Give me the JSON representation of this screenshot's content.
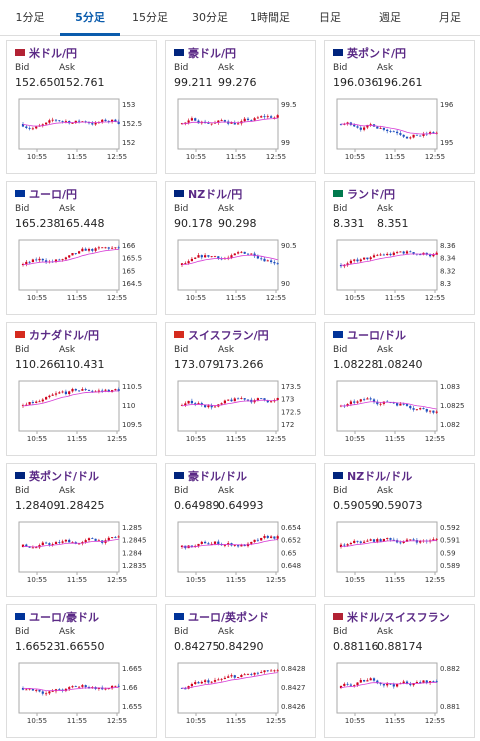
{
  "tabs": [
    "1分足",
    "5分足",
    "15分足",
    "30分足",
    "1時間足",
    "日足",
    "週足",
    "月足"
  ],
  "active_tab": 1,
  "bid_label": "Bid",
  "ask_label": "Ask",
  "panels": [
    {
      "title": "米ドル/円",
      "bid": "152.650",
      "ask": "152.761",
      "yticks": [
        "153",
        "152.5",
        "152"
      ],
      "xticks": [
        "10:55",
        "11:55",
        "12:55"
      ]
    },
    {
      "title": "豪ドル/円",
      "bid": "99.211",
      "ask": "99.276",
      "yticks": [
        "99.5",
        "99"
      ],
      "xticks": [
        "10:55",
        "11:55",
        "12:55"
      ]
    },
    {
      "title": "英ポンド/円",
      "bid": "196.036",
      "ask": "196.261",
      "yticks": [
        "196",
        "195"
      ],
      "xticks": [
        "10:55",
        "11:55",
        "12:55"
      ]
    },
    {
      "title": "ユーロ/円",
      "bid": "165.238",
      "ask": "165.448",
      "yticks": [
        "166",
        "165.5",
        "165",
        "164.5"
      ],
      "xticks": [
        "10:55",
        "11:55",
        "12:55"
      ]
    },
    {
      "title": "NZドル/円",
      "bid": "90.178",
      "ask": "90.298",
      "yticks": [
        "90.5",
        "90"
      ],
      "xticks": [
        "10:55",
        "11:55",
        "12:55"
      ]
    },
    {
      "title": "ランド/円",
      "bid": "8.331",
      "ask": "8.351",
      "yticks": [
        "8.36",
        "8.34",
        "8.32",
        "8.3"
      ],
      "xticks": [
        "10:55",
        "11:55",
        "12:55"
      ]
    },
    {
      "title": "カナダドル/円",
      "bid": "110.266",
      "ask": "110.431",
      "yticks": [
        "110.5",
        "110",
        "109.5"
      ],
      "xticks": [
        "10:55",
        "11:55",
        "12:55"
      ]
    },
    {
      "title": "スイスフラン/円",
      "bid": "173.079",
      "ask": "173.266",
      "yticks": [
        "173.5",
        "173",
        "172.5",
        "172"
      ],
      "xticks": [
        "10:55",
        "11:55",
        "12:55"
      ]
    },
    {
      "title": "ユーロ/ドル",
      "bid": "1.08228",
      "ask": "1.08240",
      "yticks": [
        "1.083",
        "1.0825",
        "1.082"
      ],
      "xticks": [
        "10:55",
        "11:55",
        "12:55"
      ]
    },
    {
      "title": "英ポンド/ドル",
      "bid": "1.28409",
      "ask": "1.28425",
      "yticks": [
        "1.285",
        "1.2845",
        "1.284",
        "1.2835"
      ],
      "xticks": [
        "10:55",
        "11:55",
        "12:55"
      ]
    },
    {
      "title": "豪ドル/ドル",
      "bid": "0.64989",
      "ask": "0.64993",
      "yticks": [
        "0.654",
        "0.652",
        "0.65",
        "0.648"
      ],
      "xticks": [
        "10:55",
        "11:55",
        "12:55"
      ]
    },
    {
      "title": "NZドル/ドル",
      "bid": "0.59059",
      "ask": "0.59073",
      "yticks": [
        "0.592",
        "0.591",
        "0.59",
        "0.589"
      ],
      "xticks": [
        "10:55",
        "11:55",
        "12:55"
      ]
    },
    {
      "title": "ユーロ/豪ドル",
      "bid": "1.66523",
      "ask": "1.66550",
      "yticks": [
        "1.665",
        "1.66",
        "1.655"
      ],
      "xticks": [
        "10:55",
        "11:55",
        "12:55"
      ]
    },
    {
      "title": "ユーロ/英ポンド",
      "bid": "0.84275",
      "ask": "0.84290",
      "yticks": [
        "0.8428",
        "0.8427",
        "0.8426"
      ],
      "xticks": [
        "10:55",
        "11:55",
        "12:55"
      ]
    },
    {
      "title": "米ドル/スイスフラン",
      "bid": "0.88116",
      "ask": "0.88174",
      "yticks": [
        "0.882",
        "0.881"
      ],
      "xticks": [
        "10:55",
        "11:55",
        "12:55"
      ]
    }
  ]
}
